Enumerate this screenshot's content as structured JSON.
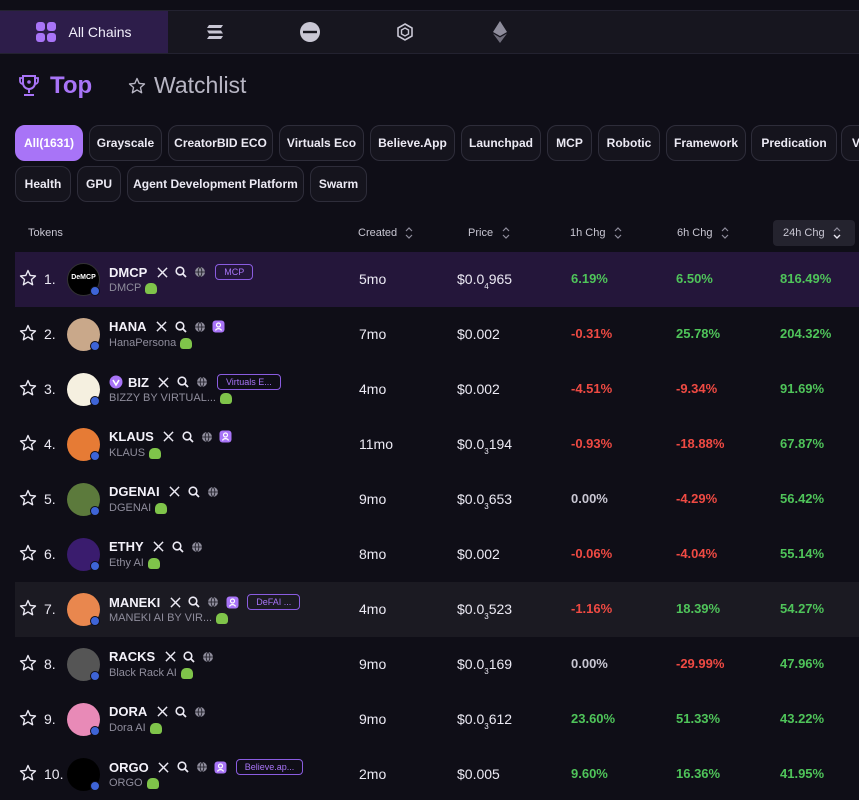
{
  "chains": {
    "active_label": "All Chains",
    "tabs": [
      {
        "icon": "grid-icon",
        "label": "All Chains"
      },
      {
        "icon": "solana-icon"
      },
      {
        "icon": "base-icon"
      },
      {
        "icon": "bnb-icon"
      },
      {
        "icon": "ethereum-icon"
      }
    ]
  },
  "header": {
    "top_label": "Top",
    "watchlist_label": "Watchlist"
  },
  "categories": [
    "All(1631)",
    "Grayscale",
    "CreatorBID ECO",
    "Virtuals Eco",
    "Believe.App",
    "Launchpad",
    "MCP",
    "Robotic",
    "Framework",
    "Predication",
    "V",
    "Health",
    "GPU",
    "Agent Development Platform",
    "Swarm"
  ],
  "columns": {
    "tokens": "Tokens",
    "created": "Created",
    "price": "Price",
    "h1": "1h Chg",
    "h6": "6h Chg",
    "h24": "24h Chg"
  },
  "colors": {
    "accent": "#a874f7",
    "positive": "#4fc45a",
    "negative": "#ef4a43"
  },
  "rows": [
    {
      "rank": "1.",
      "name": "DMCP",
      "sub": "DMCP",
      "tag": "MCP",
      "icons": [
        "x-icon",
        "search-icon",
        "globe-icon"
      ],
      "created": "5mo",
      "price_main": "$0.0",
      "price_sub": "4",
      "price_tail": "965",
      "h1": "6.19%",
      "h6": "6.50%",
      "h24": "816.49%",
      "h1s": "pos",
      "h6s": "pos",
      "h24s": "pos",
      "avatar_text": "DeMCP"
    },
    {
      "rank": "2.",
      "name": "HANA",
      "sub": "HanaPersona",
      "tag": "",
      "icons": [
        "x-icon",
        "search-icon",
        "globe-icon",
        "agent-icon"
      ],
      "created": "7mo",
      "price_main": "$0.002",
      "price_sub": "",
      "price_tail": "",
      "h1": "-0.31%",
      "h6": "25.78%",
      "h24": "204.32%",
      "h1s": "neg",
      "h6s": "pos",
      "h24s": "pos"
    },
    {
      "rank": "3.",
      "name": "BIZ",
      "sub": "BIZZY BY VIRTUAL...",
      "tag": "Virtuals E...",
      "icons": [
        "x-icon",
        "search-icon",
        "globe-icon"
      ],
      "created": "4mo",
      "price_main": "$0.002",
      "price_sub": "",
      "price_tail": "",
      "h1": "-4.51%",
      "h6": "-9.34%",
      "h24": "91.69%",
      "h1s": "neg",
      "h6s": "neg",
      "h24s": "pos",
      "verified": true
    },
    {
      "rank": "4.",
      "name": "KLAUS",
      "sub": "KLAUS",
      "tag": "",
      "icons": [
        "x-icon",
        "search-icon",
        "globe-icon",
        "agent-icon"
      ],
      "created": "11mo",
      "price_main": "$0.0",
      "price_sub": "3",
      "price_tail": "194",
      "h1": "-0.93%",
      "h6": "-18.88%",
      "h24": "67.87%",
      "h1s": "neg",
      "h6s": "neg",
      "h24s": "pos"
    },
    {
      "rank": "5.",
      "name": "DGENAI",
      "sub": "DGENAI",
      "tag": "",
      "icons": [
        "x-icon",
        "search-icon",
        "globe-icon"
      ],
      "created": "9mo",
      "price_main": "$0.0",
      "price_sub": "3",
      "price_tail": "653",
      "h1": "0.00%",
      "h6": "-4.29%",
      "h24": "56.42%",
      "h1s": "zero",
      "h6s": "neg",
      "h24s": "pos"
    },
    {
      "rank": "6.",
      "name": "ETHY",
      "sub": "Ethy AI",
      "tag": "",
      "icons": [
        "x-icon",
        "search-icon",
        "globe-icon"
      ],
      "created": "8mo",
      "price_main": "$0.002",
      "price_sub": "",
      "price_tail": "",
      "h1": "-0.06%",
      "h6": "-4.04%",
      "h24": "55.14%",
      "h1s": "neg",
      "h6s": "neg",
      "h24s": "pos"
    },
    {
      "rank": "7.",
      "name": "MANEKI",
      "sub": "MANEKI AI BY VIR...",
      "tag": "DeFAI ...",
      "icons": [
        "x-icon",
        "search-icon",
        "globe-icon",
        "agent-icon"
      ],
      "created": "4mo",
      "price_main": "$0.0",
      "price_sub": "3",
      "price_tail": "523",
      "h1": "-1.16%",
      "h6": "18.39%",
      "h24": "54.27%",
      "h1s": "neg",
      "h6s": "pos",
      "h24s": "pos"
    },
    {
      "rank": "8.",
      "name": "RACKS",
      "sub": "Black Rack AI",
      "tag": "",
      "icons": [
        "x-icon",
        "search-icon",
        "globe-icon"
      ],
      "created": "9mo",
      "price_main": "$0.0",
      "price_sub": "3",
      "price_tail": "169",
      "h1": "0.00%",
      "h6": "-29.99%",
      "h24": "47.96%",
      "h1s": "zero",
      "h6s": "neg",
      "h24s": "pos"
    },
    {
      "rank": "9.",
      "name": "DORA",
      "sub": "Dora AI",
      "tag": "",
      "icons": [
        "x-icon",
        "search-icon",
        "globe-icon"
      ],
      "created": "9mo",
      "price_main": "$0.0",
      "price_sub": "3",
      "price_tail": "612",
      "h1": "23.60%",
      "h6": "51.33%",
      "h24": "43.22%",
      "h1s": "pos",
      "h6s": "pos",
      "h24s": "pos"
    },
    {
      "rank": "10.",
      "name": "ORGO",
      "sub": "ORGO",
      "tag": "Believe.ap...",
      "icons": [
        "x-icon",
        "search-icon",
        "globe-icon",
        "agent-icon"
      ],
      "created": "2mo",
      "price_main": "$0.005",
      "price_sub": "",
      "price_tail": "",
      "h1": "9.60%",
      "h6": "16.36%",
      "h24": "41.95%",
      "h1s": "pos",
      "h6s": "pos",
      "h24s": "pos"
    }
  ]
}
